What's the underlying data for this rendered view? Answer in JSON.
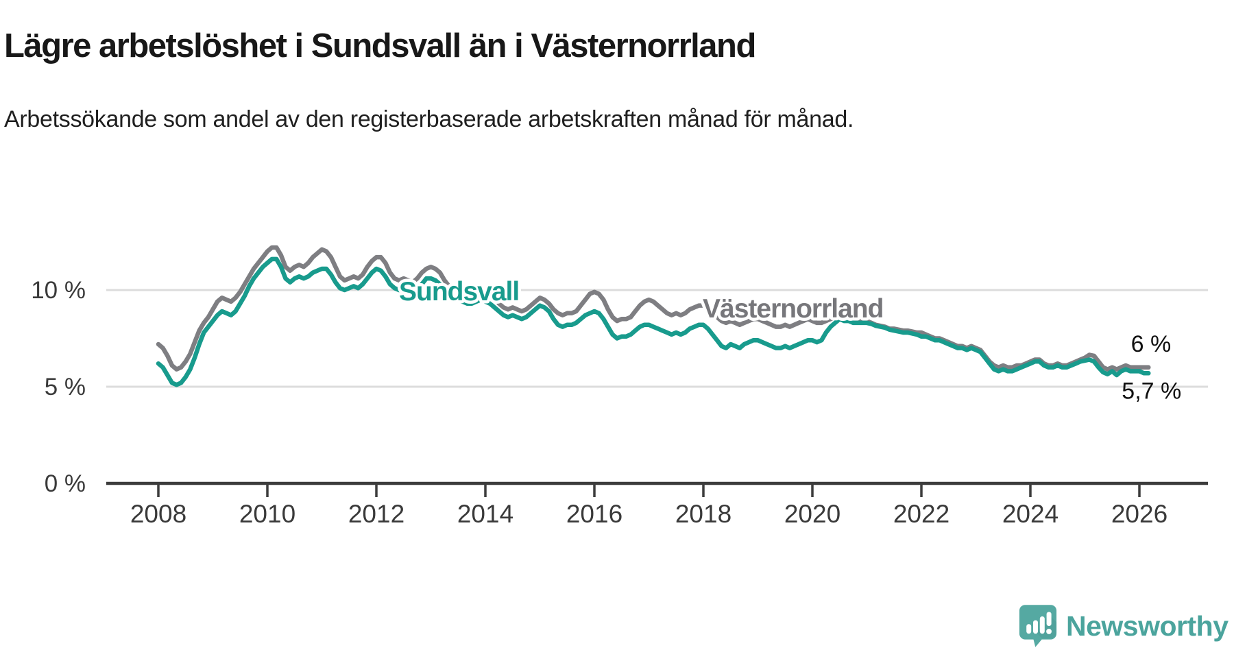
{
  "title": "Lägre arbetslöshet i Sundsvall än i Västernorrland",
  "subtitle": "Arbetssökande som andel av den registerbaserade arbetskraften månad för månad.",
  "branding": {
    "logo_text": "Newsworthy",
    "logo_color": "#4ba49d",
    "logo_icon": "speech-bubble-bar-chart-icon"
  },
  "colors": {
    "sundsvall_line": "#189b8d",
    "vasternorrland_line": "#7e7e82",
    "vasternorrland_label": "#77777b",
    "gridline": "#dcdcdc",
    "axis": "#3c3c3c",
    "tick_text": "#3a3a3a",
    "end_label_text": "#111111",
    "title_text": "#181818"
  },
  "chart_data": {
    "type": "line",
    "title": "Lägre arbetslöshet i Sundsvall än i Västernorrland",
    "x_monthly_start": "2008-01",
    "x_monthly_end": "2026-03",
    "x_ticks": [
      2008,
      2010,
      2012,
      2014,
      2016,
      2018,
      2020,
      2022,
      2024,
      2026
    ],
    "y_ticks": [
      {
        "value": 0,
        "label": "0 %"
      },
      {
        "value": 5,
        "label": "5 %"
      },
      {
        "value": 10,
        "label": "10 %"
      }
    ],
    "ylim": [
      0,
      13.5
    ],
    "grid": "horizontal-only",
    "legend_position": "inline-labels",
    "unit": "%",
    "series": [
      {
        "name": "Västernorrland",
        "end_label": "6 %",
        "values": [
          7.2,
          7.0,
          6.6,
          6.1,
          5.9,
          6.0,
          6.3,
          6.7,
          7.3,
          7.9,
          8.3,
          8.6,
          9.0,
          9.4,
          9.6,
          9.5,
          9.4,
          9.6,
          9.9,
          10.3,
          10.7,
          11.1,
          11.4,
          11.7,
          12.0,
          12.2,
          12.2,
          11.8,
          11.2,
          11.0,
          11.2,
          11.3,
          11.2,
          11.4,
          11.7,
          11.9,
          12.1,
          12.0,
          11.7,
          11.2,
          10.7,
          10.5,
          10.6,
          10.7,
          10.6,
          10.8,
          11.2,
          11.5,
          11.7,
          11.7,
          11.4,
          10.9,
          10.6,
          10.5,
          10.6,
          10.5,
          10.4,
          10.6,
          10.9,
          11.1,
          11.2,
          11.1,
          10.9,
          10.5,
          10.2,
          10.0,
          10.0,
          9.9,
          9.8,
          9.8,
          9.9,
          10.0,
          9.9,
          9.8,
          9.6,
          9.3,
          9.1,
          9.0,
          9.1,
          9.0,
          8.9,
          9.0,
          9.2,
          9.4,
          9.6,
          9.5,
          9.3,
          9.0,
          8.8,
          8.7,
          8.8,
          8.8,
          8.9,
          9.2,
          9.5,
          9.8,
          9.9,
          9.8,
          9.5,
          9.0,
          8.6,
          8.4,
          8.5,
          8.5,
          8.6,
          8.9,
          9.2,
          9.4,
          9.5,
          9.4,
          9.2,
          9.0,
          8.8,
          8.7,
          8.8,
          8.7,
          8.8,
          9.0,
          9.1,
          9.2,
          9.2,
          9.1,
          8.9,
          8.6,
          8.4,
          8.3,
          8.4,
          8.3,
          8.2,
          8.3,
          8.4,
          8.5,
          8.5,
          8.4,
          8.3,
          8.2,
          8.1,
          8.1,
          8.2,
          8.1,
          8.2,
          8.3,
          8.4,
          8.5,
          8.4,
          8.3,
          8.3,
          8.4,
          8.5,
          8.6,
          8.7,
          8.6,
          8.6,
          8.5,
          8.5,
          8.4,
          8.4,
          8.3,
          8.2,
          8.15,
          8.1,
          8.0,
          8.0,
          7.95,
          7.9,
          7.9,
          7.85,
          7.8,
          7.8,
          7.7,
          7.6,
          7.5,
          7.5,
          7.4,
          7.3,
          7.2,
          7.1,
          7.1,
          7.0,
          7.1,
          7.0,
          6.9,
          6.6,
          6.3,
          6.1,
          6.0,
          6.1,
          6.0,
          6.0,
          6.1,
          6.1,
          6.2,
          6.3,
          6.4,
          6.4,
          6.2,
          6.1,
          6.1,
          6.2,
          6.1,
          6.1,
          6.2,
          6.3,
          6.4,
          6.5,
          6.65,
          6.6,
          6.3,
          6.0,
          5.9,
          6.0,
          5.9,
          6.0,
          6.1,
          6.0,
          6.0,
          6.0,
          6.0,
          6.0
        ]
      },
      {
        "name": "Sundsvall",
        "end_label": "5,7 %",
        "values": [
          6.2,
          6.0,
          5.6,
          5.2,
          5.1,
          5.2,
          5.5,
          5.9,
          6.5,
          7.2,
          7.8,
          8.1,
          8.4,
          8.7,
          8.9,
          8.8,
          8.7,
          8.9,
          9.3,
          9.7,
          10.2,
          10.6,
          10.9,
          11.2,
          11.4,
          11.6,
          11.6,
          11.2,
          10.6,
          10.4,
          10.6,
          10.7,
          10.6,
          10.7,
          10.9,
          11.0,
          11.1,
          11.1,
          10.8,
          10.4,
          10.1,
          10.0,
          10.1,
          10.2,
          10.1,
          10.3,
          10.6,
          10.9,
          11.1,
          11.0,
          10.7,
          10.3,
          10.1,
          10.0,
          10.1,
          9.9,
          9.8,
          10.0,
          10.3,
          10.6,
          10.6,
          10.5,
          10.3,
          10.0,
          9.7,
          9.5,
          9.5,
          9.4,
          9.3,
          9.3,
          9.4,
          9.5,
          9.4,
          9.3,
          9.1,
          8.9,
          8.7,
          8.6,
          8.7,
          8.6,
          8.5,
          8.6,
          8.8,
          9.0,
          9.2,
          9.1,
          8.9,
          8.5,
          8.2,
          8.1,
          8.2,
          8.2,
          8.3,
          8.5,
          8.7,
          8.8,
          8.9,
          8.8,
          8.5,
          8.1,
          7.7,
          7.5,
          7.6,
          7.6,
          7.7,
          7.9,
          8.1,
          8.2,
          8.2,
          8.1,
          8.0,
          7.9,
          7.8,
          7.7,
          7.8,
          7.7,
          7.8,
          8.0,
          8.1,
          8.2,
          8.2,
          8.0,
          7.7,
          7.4,
          7.1,
          7.0,
          7.2,
          7.1,
          7.0,
          7.2,
          7.3,
          7.4,
          7.4,
          7.3,
          7.2,
          7.1,
          7.0,
          7.0,
          7.1,
          7.0,
          7.1,
          7.2,
          7.3,
          7.4,
          7.4,
          7.3,
          7.4,
          7.8,
          8.1,
          8.3,
          8.5,
          8.4,
          8.4,
          8.3,
          8.3,
          8.3,
          8.3,
          8.25,
          8.15,
          8.1,
          8.05,
          7.95,
          7.9,
          7.85,
          7.8,
          7.8,
          7.75,
          7.7,
          7.6,
          7.6,
          7.5,
          7.4,
          7.4,
          7.3,
          7.2,
          7.1,
          7.0,
          7.0,
          6.9,
          7.0,
          6.9,
          6.8,
          6.5,
          6.2,
          5.9,
          5.8,
          5.9,
          5.8,
          5.8,
          5.9,
          6.0,
          6.1,
          6.2,
          6.3,
          6.3,
          6.1,
          6.0,
          6.0,
          6.1,
          6.0,
          6.0,
          6.1,
          6.2,
          6.3,
          6.35,
          6.4,
          6.3,
          6.0,
          5.75,
          5.65,
          5.8,
          5.6,
          5.8,
          5.9,
          5.8,
          5.8,
          5.8,
          5.7,
          5.7
        ]
      }
    ]
  }
}
